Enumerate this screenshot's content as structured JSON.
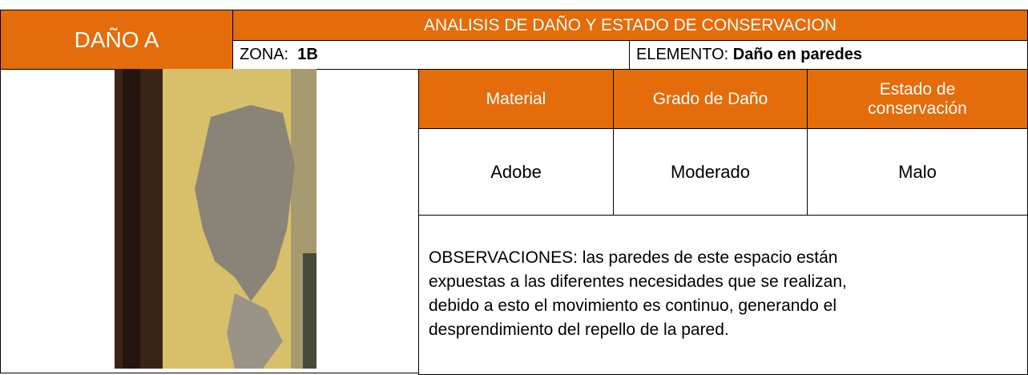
{
  "header": {
    "label": "DAÑO A",
    "title": "ANALISIS DE DAÑO Y ESTADO DE CONSERVACION"
  },
  "zone": {
    "label": "ZONA:",
    "value": "1B"
  },
  "element": {
    "label": "ELEMENTO:",
    "value": "Daño en paredes"
  },
  "table": {
    "headers": [
      "Material",
      "Grado de Daño",
      "Estado de conservación"
    ],
    "values": [
      "Adobe",
      "Moderado",
      "Malo"
    ]
  },
  "observations": "OBSERVACIONES: las paredes de este espacio están expuestas a las diferentes necesidades que se realizan, debido a esto el movimiento es continuo, generando el desprendimiento del repello de la pared."
}
